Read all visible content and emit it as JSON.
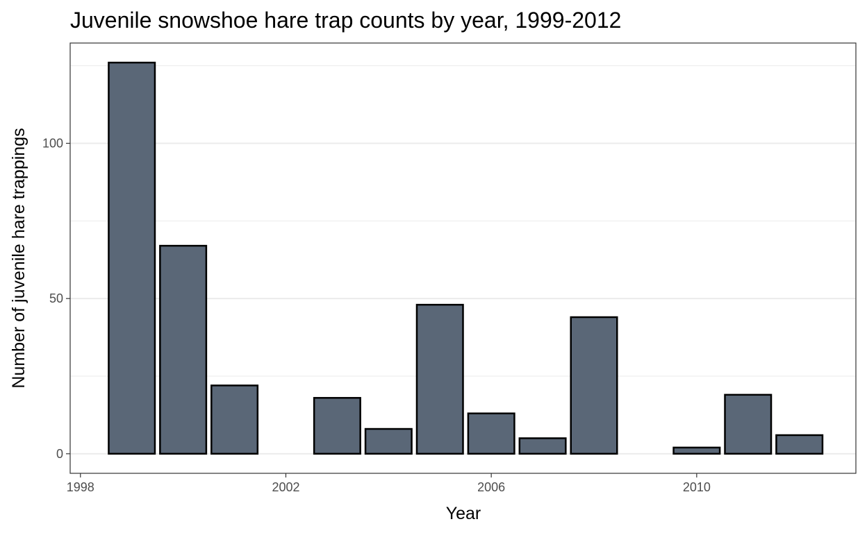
{
  "chart_data": {
    "type": "bar",
    "title": "Juvenile snowshoe hare trap counts by year, 1999-2012",
    "xlabel": "Year",
    "ylabel": "Number of juvenile hare trappings",
    "x": [
      1999,
      2000,
      2001,
      2003,
      2004,
      2005,
      2006,
      2007,
      2008,
      2010,
      2011,
      2012
    ],
    "values": [
      126,
      67,
      22,
      18,
      8,
      48,
      13,
      5,
      44,
      2,
      19,
      6
    ],
    "xlim": [
      1997.8,
      2013.1
    ],
    "ylim": [
      -6.3,
      132.3
    ],
    "x_ticks": [
      1998,
      2002,
      2006,
      2010
    ],
    "x_tick_labels": [
      "1998",
      "2002",
      "2006",
      "2010"
    ],
    "y_ticks": [
      0,
      50,
      100
    ],
    "y_tick_labels": [
      "0",
      "50",
      "100"
    ],
    "y_minor_ticks": [
      25,
      75,
      125
    ],
    "grid": true,
    "legend": "none",
    "colors": {
      "bar_fill": "#5a6777",
      "bar_stroke": "#000000",
      "grid": "#ebebeb",
      "panel_border": "#333333"
    }
  }
}
